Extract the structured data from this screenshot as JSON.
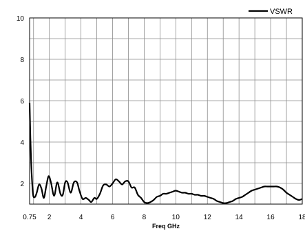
{
  "chart_data": {
    "type": "line",
    "title": "",
    "xlabel": "Freq GHz",
    "ylabel": "",
    "xlim": [
      0.75,
      18
    ],
    "ylim": [
      1,
      10
    ],
    "grid": true,
    "legend_position": "top-right",
    "x_ticks": [
      {
        "value": 0.75,
        "label": "0.75"
      },
      {
        "value": 2,
        "label": "2"
      },
      {
        "value": 4,
        "label": "4"
      },
      {
        "value": 6,
        "label": "6"
      },
      {
        "value": 8,
        "label": "8"
      },
      {
        "value": 10,
        "label": "10"
      },
      {
        "value": 12,
        "label": "12"
      },
      {
        "value": 14,
        "label": "14"
      },
      {
        "value": 16,
        "label": "16"
      },
      {
        "value": 18,
        "label": "18"
      }
    ],
    "y_ticks": [
      {
        "value": 2,
        "label": "2"
      },
      {
        "value": 4,
        "label": "4"
      },
      {
        "value": 6,
        "label": "6"
      },
      {
        "value": 8,
        "label": "8"
      },
      {
        "value": 10,
        "label": "10"
      }
    ],
    "series": [
      {
        "name": "VSWR",
        "color": "#000000",
        "x": [
          0.75,
          0.8,
          0.85,
          0.9,
          0.95,
          1.0,
          1.1,
          1.2,
          1.35,
          1.5,
          1.65,
          1.8,
          1.95,
          2.1,
          2.3,
          2.5,
          2.7,
          2.85,
          3.0,
          3.15,
          3.35,
          3.55,
          3.75,
          3.9,
          4.1,
          4.3,
          4.5,
          4.65,
          4.85,
          5.0,
          5.2,
          5.4,
          5.6,
          5.8,
          6.0,
          6.2,
          6.4,
          6.6,
          6.8,
          7.0,
          7.2,
          7.4,
          7.6,
          7.8,
          8.0,
          8.2,
          8.4,
          8.6,
          8.8,
          9.0,
          9.2,
          9.4,
          9.6,
          9.8,
          10.0,
          10.2,
          10.4,
          10.6,
          10.8,
          11.0,
          11.2,
          11.4,
          11.6,
          11.8,
          12.0,
          12.2,
          12.4,
          12.6,
          12.8,
          13.0,
          13.2,
          13.4,
          13.6,
          13.8,
          14.0,
          14.2,
          14.4,
          14.6,
          14.8,
          15.0,
          15.2,
          15.4,
          15.6,
          15.8,
          16.0,
          16.2,
          16.4,
          16.6,
          16.8,
          17.0,
          17.2,
          17.4,
          17.6,
          17.8,
          18.0
        ],
        "values": [
          5.9,
          4.2,
          3.0,
          2.2,
          1.6,
          1.35,
          1.35,
          1.55,
          1.95,
          1.75,
          1.3,
          1.85,
          2.35,
          2.05,
          1.4,
          2.05,
          1.5,
          1.45,
          2.05,
          2.05,
          1.55,
          2.05,
          2.05,
          1.65,
          1.25,
          1.3,
          1.2,
          1.1,
          1.3,
          1.25,
          1.5,
          1.9,
          1.95,
          1.85,
          2.0,
          2.2,
          2.1,
          1.95,
          2.1,
          2.1,
          1.8,
          1.8,
          1.45,
          1.3,
          1.1,
          1.05,
          1.1,
          1.2,
          1.35,
          1.4,
          1.5,
          1.5,
          1.55,
          1.6,
          1.65,
          1.6,
          1.55,
          1.55,
          1.5,
          1.5,
          1.45,
          1.45,
          1.4,
          1.4,
          1.35,
          1.3,
          1.25,
          1.15,
          1.1,
          1.05,
          1.05,
          1.1,
          1.15,
          1.25,
          1.3,
          1.35,
          1.45,
          1.55,
          1.65,
          1.7,
          1.75,
          1.8,
          1.85,
          1.85,
          1.85,
          1.85,
          1.85,
          1.8,
          1.7,
          1.55,
          1.45,
          1.35,
          1.25,
          1.2,
          1.25
        ]
      }
    ]
  }
}
